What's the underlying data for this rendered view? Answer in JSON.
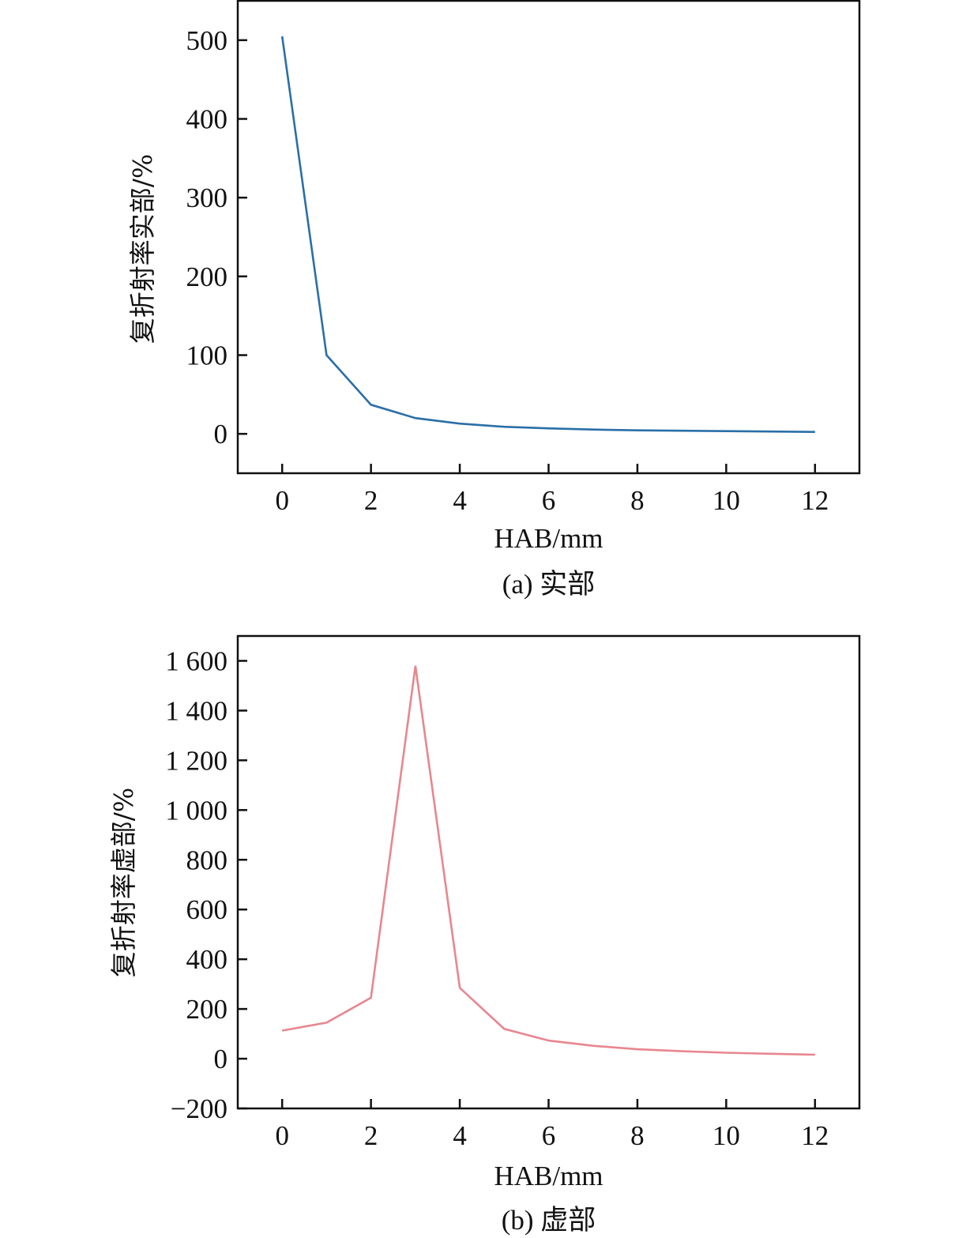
{
  "chart_data": [
    {
      "type": "line",
      "caption": "(a) 实部",
      "xlabel": "HAB/mm",
      "ylabel": "复折射率实部/%",
      "xlim": [
        -1,
        13
      ],
      "ylim": [
        -50,
        550
      ],
      "xticks": [
        "0",
        "2",
        "4",
        "6",
        "8",
        "10",
        "12"
      ],
      "xtick_values": [
        0,
        2,
        4,
        6,
        8,
        10,
        12
      ],
      "yticks": [
        "0",
        "100",
        "200",
        "300",
        "400",
        "500"
      ],
      "ytick_values": [
        0,
        100,
        200,
        300,
        400,
        500
      ],
      "grid": false,
      "series": [
        {
          "color": "#2a6fa8",
          "x": [
            0,
            1,
            2,
            3,
            4,
            5,
            6,
            7,
            8,
            9,
            10,
            11,
            12
          ],
          "y": [
            505,
            100,
            37,
            20,
            13,
            9,
            7,
            5.5,
            4.5,
            4,
            3.5,
            3,
            2.5
          ]
        }
      ]
    },
    {
      "type": "line",
      "caption": "(b) 虚部",
      "xlabel": "HAB/mm",
      "ylabel": "复折射率虚部/%",
      "xlim": [
        -1,
        13
      ],
      "ylim": [
        -200,
        1700
      ],
      "xticks": [
        "0",
        "2",
        "4",
        "6",
        "8",
        "10",
        "12"
      ],
      "xtick_values": [
        0,
        2,
        4,
        6,
        8,
        10,
        12
      ],
      "yticks": [
        "−200",
        "0",
        "200",
        "400",
        "600",
        "800",
        "1 000",
        "1 200",
        "1 400",
        "1 600"
      ],
      "ytick_values": [
        -200,
        0,
        200,
        400,
        600,
        800,
        1000,
        1200,
        1400,
        1600
      ],
      "grid": false,
      "series": [
        {
          "color": "#e8868f",
          "x": [
            0,
            1,
            2,
            3,
            4,
            5,
            6,
            7,
            8,
            9,
            10,
            11,
            12
          ],
          "y": [
            113,
            145,
            245,
            1580,
            285,
            120,
            73,
            52,
            38,
            30,
            24,
            20,
            16
          ]
        }
      ]
    }
  ]
}
